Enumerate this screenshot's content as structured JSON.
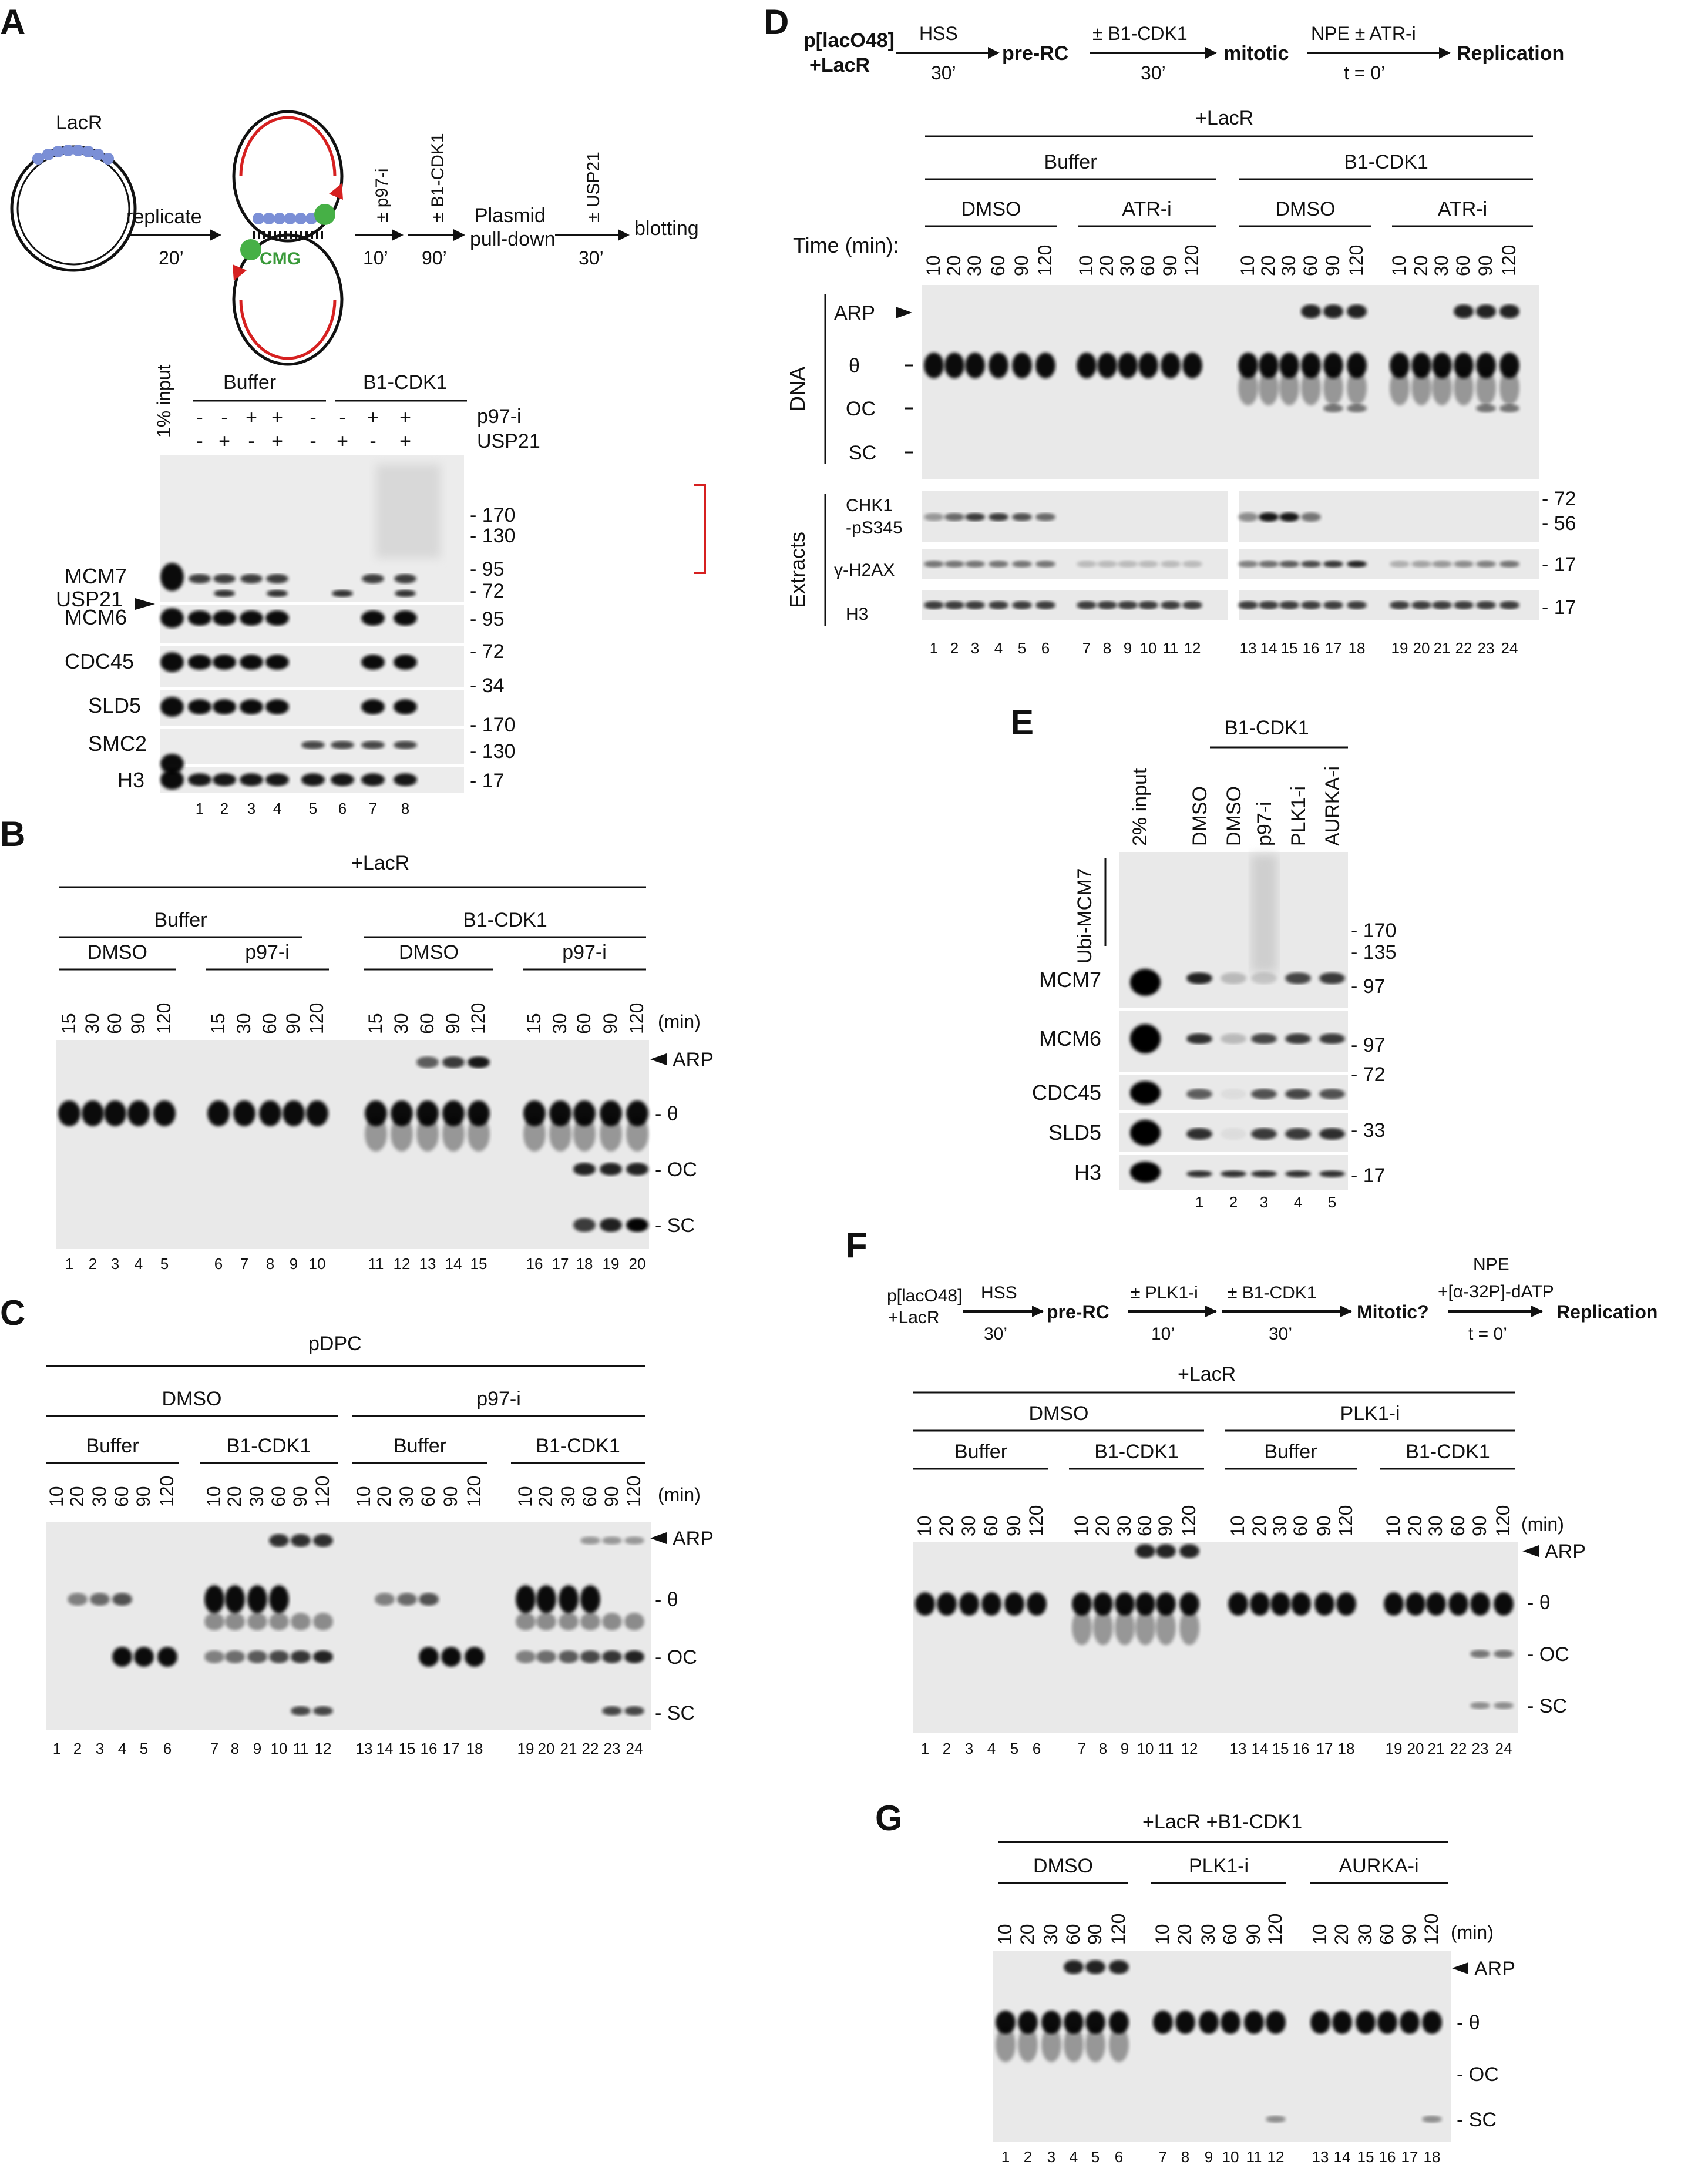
{
  "panelA": {
    "label": "A",
    "schematic": {
      "lacr": "LacR",
      "replicate": "replicate",
      "t20": "20’",
      "cmg": "CMG",
      "p97": "± p97-i",
      "t10": "10’",
      "b1": "± B1-CDK1",
      "t90": "90’",
      "pulldown1": "Plasmid",
      "pulldown2": "pull-down",
      "usp": "± USP21",
      "t30": "30’",
      "blotting": "blotting"
    },
    "input": "1% input",
    "groups": [
      "Buffer",
      "B1-CDK1"
    ],
    "p97_label": "p97-i",
    "usp_label": "USP21",
    "p97_signs": [
      "-",
      "-",
      "+",
      "+",
      "-",
      "-",
      "+",
      "+"
    ],
    "usp_signs": [
      "-",
      "+",
      "-",
      "+",
      "-",
      "+",
      "-",
      "+"
    ],
    "rows": [
      "MCM7",
      "USP21",
      "MCM6",
      "CDC45",
      "SLD5",
      "SMC2",
      "H3"
    ],
    "markers": [
      "170",
      "130",
      "95",
      "72",
      "95",
      "72",
      "34",
      "170",
      "130",
      "17"
    ],
    "lanes": [
      "1",
      "2",
      "3",
      "4",
      "5",
      "6",
      "7",
      "8"
    ]
  },
  "panelB": {
    "label": "B",
    "header": "+LacR",
    "groups": [
      "Buffer",
      "B1-CDK1"
    ],
    "subgroups": [
      "DMSO",
      "p97-i",
      "DMSO",
      "p97-i"
    ],
    "times": [
      "15",
      "30",
      "60",
      "90",
      "120"
    ],
    "unit": "(min)",
    "bands": [
      "ARP",
      "θ",
      "OC",
      "SC"
    ],
    "lanes": [
      "1",
      "2",
      "3",
      "4",
      "5",
      "6",
      "7",
      "8",
      "9",
      "10",
      "11",
      "12",
      "13",
      "14",
      "15",
      "16",
      "17",
      "18",
      "19",
      "20"
    ]
  },
  "panelC": {
    "label": "C",
    "header": "pDPC",
    "groups": [
      "DMSO",
      "p97-i"
    ],
    "subgroups": [
      "Buffer",
      "B1-CDK1",
      "Buffer",
      "B1-CDK1"
    ],
    "times": [
      "10",
      "20",
      "30",
      "60",
      "90",
      "120"
    ],
    "unit": "(min)",
    "bands": [
      "ARP",
      "θ",
      "OC",
      "SC"
    ],
    "lanes": [
      "1",
      "2",
      "3",
      "4",
      "5",
      "6",
      "7",
      "8",
      "9",
      "10",
      "11",
      "12",
      "13",
      "14",
      "15",
      "16",
      "17",
      "18",
      "19",
      "20",
      "21",
      "22",
      "23",
      "24"
    ]
  },
  "panelD": {
    "label": "D",
    "scheme": {
      "start1": "p[lacO48]",
      "start2": "+LacR",
      "hss": "HSS",
      "t30a": "30’",
      "prerc": "pre-RC",
      "b1": "± B1-CDK1",
      "t30b": "30’",
      "mitotic": "mitotic",
      "npe": "NPE ± ATR-i",
      "t0": "t = 0’",
      "replication": "Replication"
    },
    "header": "+LacR",
    "groups": [
      "Buffer",
      "B1-CDK1"
    ],
    "subgroups": [
      "DMSO",
      "ATR-i",
      "DMSO",
      "ATR-i"
    ],
    "time_label": "Time (min):",
    "times": [
      "10",
      "20",
      "30",
      "60",
      "90",
      "120"
    ],
    "dna_label": "DNA",
    "bands": [
      "ARP",
      "θ",
      "OC",
      "SC"
    ],
    "extracts_label": "Extracts",
    "rows": [
      "CHK1",
      "-pS345",
      "γ-H2AX",
      "H3"
    ],
    "markers": [
      "72",
      "56",
      "17",
      "17"
    ],
    "lanes": [
      "1",
      "2",
      "3",
      "4",
      "5",
      "6",
      "7",
      "8",
      "9",
      "10",
      "11",
      "12",
      "13",
      "14",
      "15",
      "16",
      "17",
      "18",
      "19",
      "20",
      "21",
      "22",
      "23",
      "24"
    ]
  },
  "panelE": {
    "label": "E",
    "group": "B1-CDK1",
    "columns": [
      "2% input",
      "DMSO",
      "DMSO",
      "p97-i",
      "PLK1-i",
      "AURKA-i"
    ],
    "ubi": "Ubi-MCM7",
    "rows": [
      "MCM7",
      "MCM6",
      "CDC45",
      "SLD5",
      "H3"
    ],
    "markers": [
      "170",
      "135",
      "97",
      "97",
      "72",
      "33",
      "17"
    ],
    "lanes": [
      "1",
      "2",
      "3",
      "4",
      "5"
    ]
  },
  "panelF": {
    "label": "F",
    "scheme": {
      "start1": "p[lacO48]",
      "start2": "+LacR",
      "hss": "HSS",
      "t30a": "30’",
      "prerc": "pre-RC",
      "plk": "± PLK1-i",
      "t10": "10’",
      "b1": "± B1-CDK1",
      "t30b": "30’",
      "mitotic": "Mitotic?",
      "npe": "NPE",
      "dtp": "+[α-32P]-dATP",
      "t0": "t = 0’",
      "replication": "Replication"
    },
    "header": "+LacR",
    "groups": [
      "DMSO",
      "PLK1-i"
    ],
    "subgroups": [
      "Buffer",
      "B1-CDK1",
      "Buffer",
      "B1-CDK1"
    ],
    "times": [
      "10",
      "20",
      "30",
      "60",
      "90",
      "120"
    ],
    "unit": "(min)",
    "bands": [
      "ARP",
      "θ",
      "OC",
      "SC"
    ],
    "lanes": [
      "1",
      "2",
      "3",
      "4",
      "5",
      "6",
      "7",
      "8",
      "9",
      "10",
      "11",
      "12",
      "13",
      "14",
      "15",
      "16",
      "17",
      "18",
      "19",
      "20",
      "21",
      "22",
      "23",
      "24"
    ]
  },
  "panelG": {
    "label": "G",
    "header": "+LacR +B1-CDK1",
    "groups": [
      "DMSO",
      "PLK1-i",
      "AURKA-i"
    ],
    "times": [
      "10",
      "20",
      "30",
      "60",
      "90",
      "120"
    ],
    "unit": "(min)",
    "bands": [
      "ARP",
      "θ",
      "OC",
      "SC"
    ],
    "lanes": [
      "1",
      "2",
      "3",
      "4",
      "5",
      "6",
      "7",
      "8",
      "9",
      "10",
      "11",
      "12",
      "13",
      "14",
      "15",
      "16",
      "17",
      "18"
    ]
  }
}
